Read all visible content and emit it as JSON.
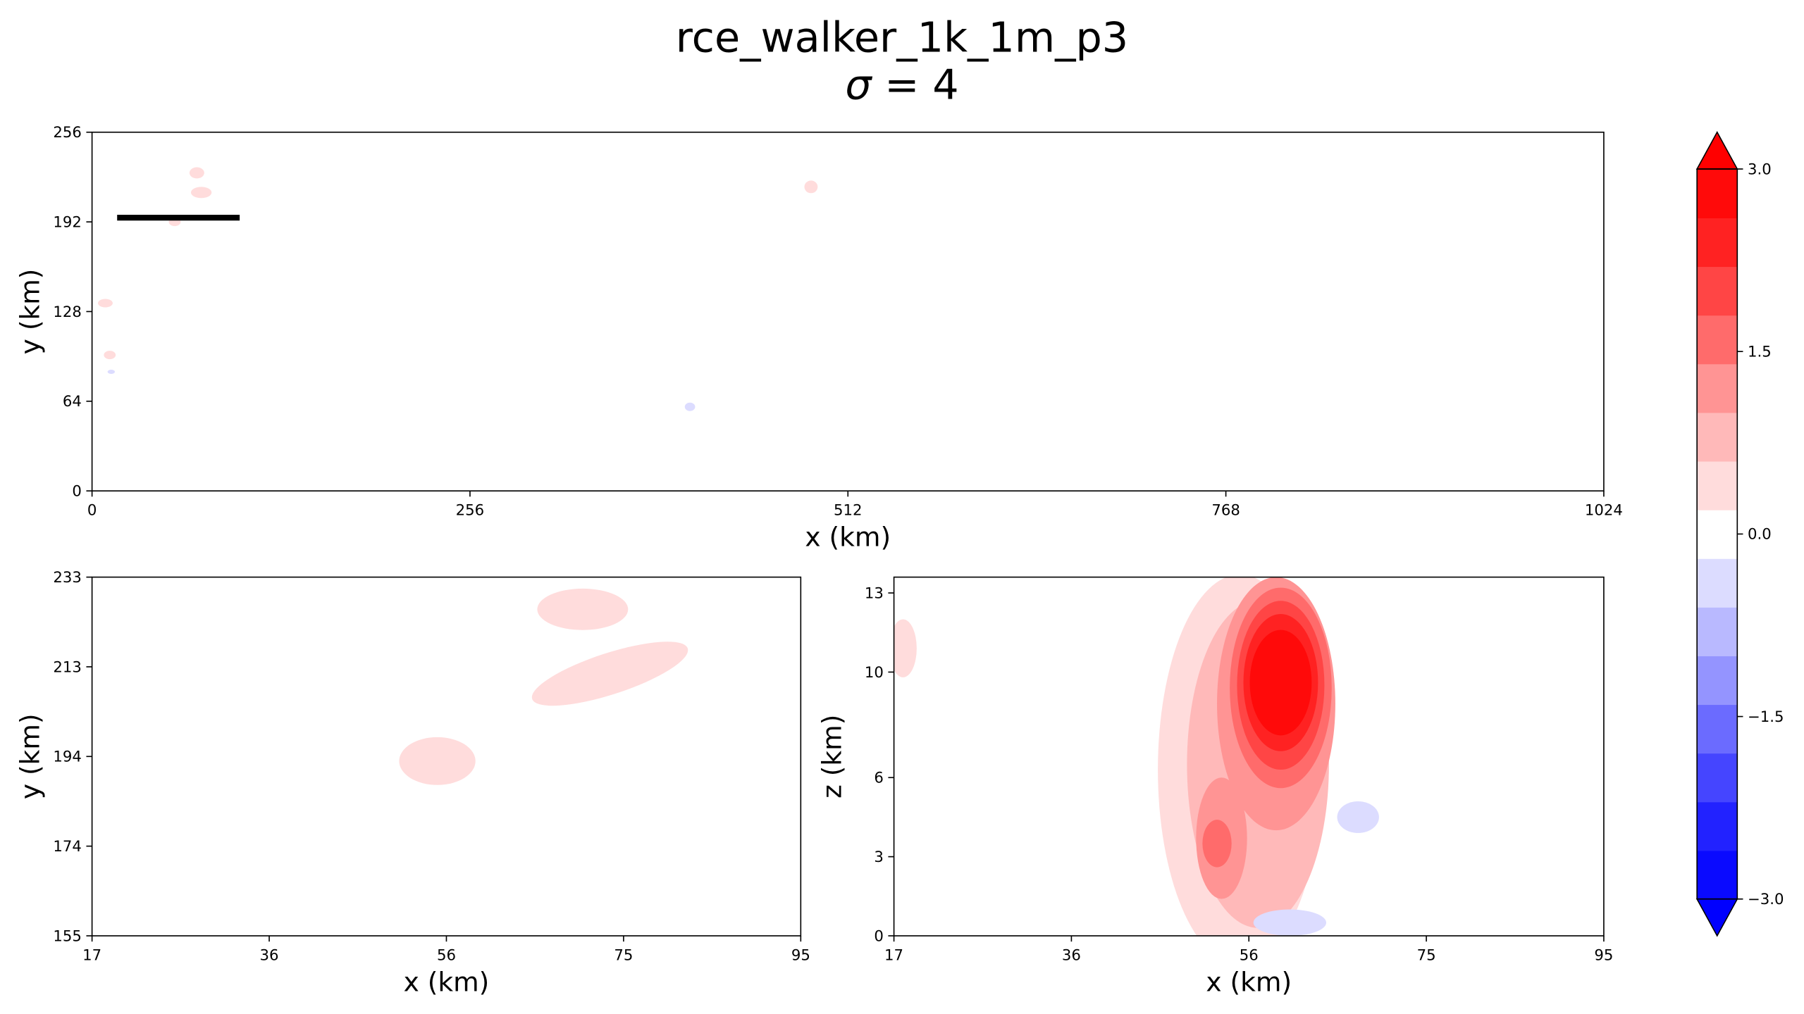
{
  "title": "rce_walker_1k_1m_p3",
  "subtitle_symbol": "σ",
  "subtitle_rest": " = 4",
  "colorbar": {
    "levels": [
      -3.0,
      -2.6,
      -2.2,
      -1.8,
      -1.4,
      -1.0,
      -0.6,
      -0.2,
      0.2,
      0.6,
      1.0,
      1.4,
      1.8,
      2.2,
      2.6,
      3.0
    ],
    "colors": [
      "#0a0aff",
      "#2222ff",
      "#4545ff",
      "#6b6bff",
      "#9494ff",
      "#b9b9ff",
      "#dcdcff",
      "#ffffff",
      "#ffdcdc",
      "#ffb9b9",
      "#ff9494",
      "#ff6b6b",
      "#ff4545",
      "#ff2222",
      "#ff0a0a"
    ],
    "extend_low": "#0000ff",
    "extend_high": "#ff0000",
    "ticks": [
      "−3.0",
      "−1.5",
      "0.0",
      "1.5",
      "3.0"
    ],
    "tick_values": [
      -3.0,
      -1.5,
      0.0,
      1.5,
      3.0
    ]
  },
  "chart_data": [
    {
      "type": "heatmap",
      "panel": "top",
      "xlabel": "x (km)",
      "ylabel": "y (km)",
      "xlim": [
        0,
        1024
      ],
      "ylim": [
        0,
        256
      ],
      "xticks": [
        "0",
        "256",
        "512",
        "768",
        "1024"
      ],
      "yticks": [
        "0",
        "64",
        "128",
        "192",
        "256"
      ],
      "xtick_values": [
        0,
        256,
        512,
        768,
        1024
      ],
      "ytick_values": [
        0,
        64,
        128,
        192,
        256
      ],
      "line": {
        "x": [
          17,
          100
        ],
        "y": [
          195,
          195
        ],
        "color": "#000000"
      },
      "blobs": [
        {
          "x": 71,
          "y": 227,
          "rx": 5,
          "ry": 4,
          "value": 0.4
        },
        {
          "x": 74,
          "y": 213,
          "rx": 7,
          "ry": 4,
          "value": 0.4
        },
        {
          "x": 56,
          "y": 192,
          "rx": 4,
          "ry": 3,
          "value": 0.4
        },
        {
          "x": 9,
          "y": 134,
          "rx": 5,
          "ry": 3,
          "value": 0.4
        },
        {
          "x": 12,
          "y": 97,
          "rx": 4,
          "ry": 3,
          "value": 0.4
        },
        {
          "x": 13,
          "y": 85,
          "rx": 2.5,
          "ry": 1.5,
          "value": -0.4
        },
        {
          "x": 487,
          "y": 217,
          "rx": 4.5,
          "ry": 4.5,
          "value": 0.4
        },
        {
          "x": 405,
          "y": 60,
          "rx": 3.5,
          "ry": 3,
          "value": -0.4
        }
      ]
    },
    {
      "type": "heatmap",
      "panel": "bottom-left",
      "xlabel": "x (km)",
      "ylabel": "y (km)",
      "xlim": [
        17,
        95
      ],
      "ylim": [
        155,
        233
      ],
      "xticks": [
        "17",
        "36",
        "56",
        "75",
        "95"
      ],
      "yticks": [
        "155",
        "174",
        "194",
        "213",
        "233"
      ],
      "xtick_values": [
        17,
        36.5,
        56,
        75.5,
        95
      ],
      "ytick_values": [
        155,
        174.5,
        194,
        213.5,
        233
      ],
      "blobs": [
        {
          "x": 71,
          "y": 226,
          "rx": 5,
          "ry": 4.5,
          "value": 0.4
        },
        {
          "x": 74,
          "y": 212,
          "rx": 9,
          "ry": 4.5,
          "rotate": -18,
          "value": 0.4
        },
        {
          "x": 55,
          "y": 193,
          "rx": 4.2,
          "ry": 5.2,
          "value": 0.4
        }
      ]
    },
    {
      "type": "heatmap",
      "panel": "bottom-right",
      "xlabel": "x (km)",
      "ylabel": "z (km)",
      "xlim": [
        17,
        95
      ],
      "ylim": [
        0,
        13.6
      ],
      "xticks": [
        "17",
        "36",
        "56",
        "75",
        "95"
      ],
      "yticks": [
        "0",
        "3",
        "6",
        "10",
        "13"
      ],
      "xtick_values": [
        17,
        36.5,
        56,
        75.5,
        95
      ],
      "ytick_values": [
        0,
        3,
        6,
        10,
        13
      ],
      "blobs": [
        {
          "x": 55,
          "y": 6.3,
          "rx": 9,
          "ry": 7.4,
          "value": 0.4
        },
        {
          "x": 57,
          "y": 6.5,
          "rx": 7.8,
          "ry": 6.2,
          "value": 0.8
        },
        {
          "x": 59,
          "y": 8.8,
          "rx": 6.5,
          "ry": 4.8,
          "value": 1.2
        },
        {
          "x": 53,
          "y": 3.7,
          "rx": 2.8,
          "ry": 2.3,
          "value": 1.2
        },
        {
          "x": 59.5,
          "y": 9.4,
          "rx": 5.6,
          "ry": 3.8,
          "value": 1.6
        },
        {
          "x": 52.5,
          "y": 3.5,
          "rx": 1.6,
          "ry": 0.9,
          "value": 1.6
        },
        {
          "x": 59.5,
          "y": 9.5,
          "rx": 4.8,
          "ry": 3.2,
          "value": 2.0
        },
        {
          "x": 59.5,
          "y": 9.6,
          "rx": 4.1,
          "ry": 2.6,
          "value": 2.4
        },
        {
          "x": 59.5,
          "y": 9.6,
          "rx": 3.4,
          "ry": 2.0,
          "value": 2.8
        },
        {
          "x": 18,
          "y": 10.9,
          "rx": 1.5,
          "ry": 1.1,
          "value": 0.4
        },
        {
          "x": 68,
          "y": 4.5,
          "rx": 2.3,
          "ry": 0.6,
          "value": -0.4
        },
        {
          "x": 60.5,
          "y": 0.5,
          "rx": 4.0,
          "ry": 0.5,
          "value": -0.4
        }
      ]
    }
  ]
}
